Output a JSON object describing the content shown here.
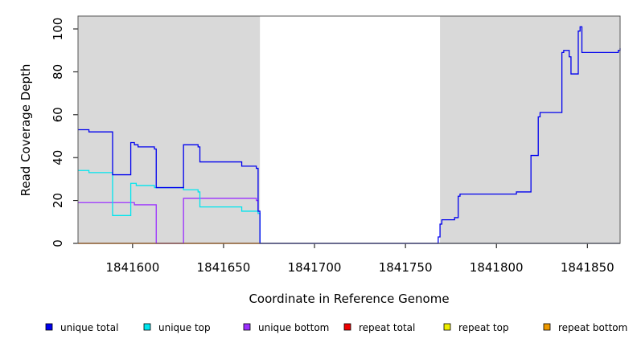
{
  "chart_data": {
    "type": "line",
    "title": "",
    "xlabel": "Coordinate in Reference Genome",
    "ylabel": "Read Coverage Depth",
    "xlim": [
      1841570,
      1841868
    ],
    "ylim": [
      0,
      106
    ],
    "xticks": [
      1841600,
      1841650,
      1841700,
      1841750,
      1841800,
      1841850
    ],
    "xtick_labels": [
      "1841600",
      "1841650",
      "1841700",
      "1841750",
      "1841800",
      "1841850"
    ],
    "yticks": [
      0,
      20,
      40,
      60,
      80,
      100
    ],
    "ytick_labels": [
      "0",
      "20",
      "40",
      "60",
      "80",
      "100"
    ],
    "shaded_regions": [
      {
        "x0": 1841570,
        "x1": 1841670,
        "color": "#d9d9d9"
      },
      {
        "x0": 1841769,
        "x1": 1841868,
        "color": "#d9d9d9"
      }
    ],
    "legend_position": "bottom",
    "series": [
      {
        "name": "unique total",
        "color": "#0000ee",
        "x": [
          1841570,
          1841576,
          1841589,
          1841599,
          1841601,
          1841603,
          1841612,
          1841613,
          1841628,
          1841636,
          1841637,
          1841660,
          1841668,
          1841669,
          1841670,
          1841768,
          1841769,
          1841770,
          1841771,
          1841777,
          1841778,
          1841779,
          1841780,
          1841811,
          1841819,
          1841823,
          1841824,
          1841825,
          1841836,
          1841837,
          1841840,
          1841841,
          1841845,
          1841846,
          1841847,
          1841849,
          1841867,
          1841868
        ],
        "y": [
          53,
          52,
          32,
          47,
          46,
          45,
          44,
          26,
          46,
          45,
          38,
          36,
          35,
          15,
          0,
          3,
          9,
          11,
          11,
          12,
          12,
          22,
          23,
          24,
          41,
          59,
          61,
          61,
          89,
          90,
          87,
          79,
          99,
          101,
          89,
          89,
          90,
          91
        ],
        "end_x": 1841868
      },
      {
        "name": "unique top",
        "color": "#00e5ee",
        "x": [
          1841570,
          1841576,
          1841589,
          1841599,
          1841602,
          1841612,
          1841628,
          1841636,
          1841637,
          1841660,
          1841669,
          1841670,
          1841769
        ],
        "y": [
          34,
          33,
          13,
          28,
          27,
          26,
          25,
          24,
          17,
          15,
          14,
          0,
          0
        ],
        "end_x": 1841868
      },
      {
        "name": "unique bottom",
        "color": "#9b30ff",
        "x": [
          1841570,
          1841601,
          1841613,
          1841628,
          1841636,
          1841668,
          1841669,
          1841670
        ],
        "y": [
          19,
          18,
          0,
          21,
          21,
          20,
          14,
          0
        ],
        "end_x": 1841868
      },
      {
        "name": "repeat total",
        "color": "#ee0000",
        "x": [
          1841570
        ],
        "y": [
          0
        ],
        "end_x": 1841868
      },
      {
        "name": "repeat top",
        "color": "#eeee00",
        "x": [
          1841570
        ],
        "y": [
          0
        ],
        "end_x": 1841868
      },
      {
        "name": "repeat bottom",
        "color": "#ee9a00",
        "x": [
          1841570
        ],
        "y": [
          0
        ],
        "end_x": 1841670
      }
    ]
  }
}
